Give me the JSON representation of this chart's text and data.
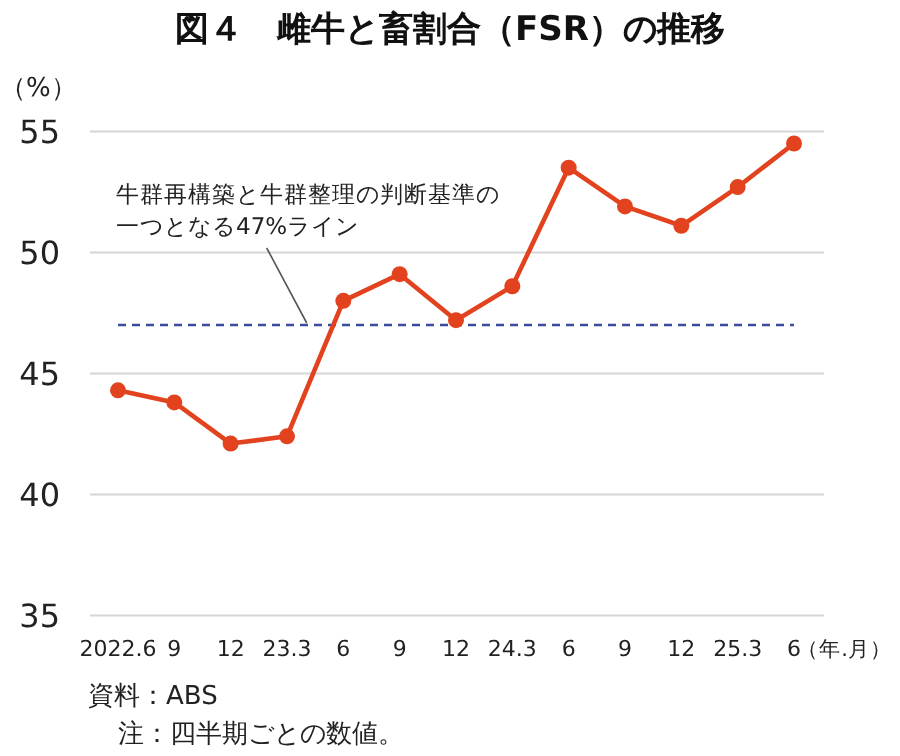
{
  "chart_data": {
    "type": "line",
    "title": "図４　雌牛と畜割合（FSR）の推移",
    "xlabel": "（年.月）",
    "ylabel": "（%）",
    "categories": [
      "2022.6",
      "9",
      "12",
      "23.3",
      "6",
      "9",
      "12",
      "24.3",
      "6",
      "9",
      "12",
      "25.3",
      "6"
    ],
    "series": [
      {
        "color": "#e2431e",
        "values": [
          44.3,
          43.8,
          42.1,
          42.4,
          48.0,
          49.1,
          47.2,
          48.6,
          53.5,
          51.9,
          51.1,
          52.7,
          54.5
        ]
      }
    ],
    "ylim": [
      35,
      55
    ],
    "yticks": [
      35,
      40,
      45,
      50,
      55
    ],
    "grid": "y",
    "marker": "circle",
    "line_style": "solid",
    "ref_lines": [
      {
        "axis": "y",
        "value": 47,
        "label": "牛群再構築と牛群整理の判断基準の一つとなる47%ライン",
        "color": "#3a4a9c",
        "line_style": "dashed"
      }
    ],
    "annotations": [
      "資料：ABS",
      "注：四半期ごとの数値。"
    ]
  }
}
